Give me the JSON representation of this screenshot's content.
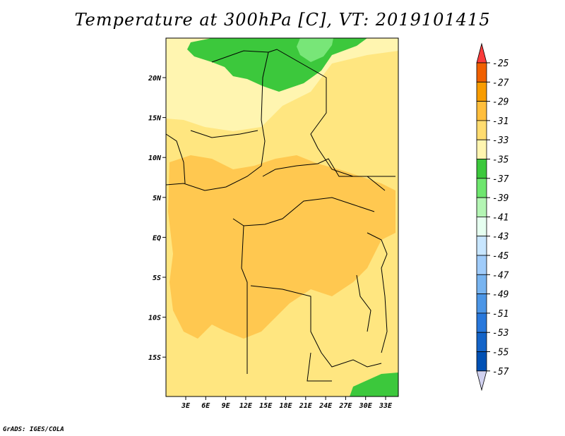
{
  "title": "Temperature at 300hPa [C], VT: 2019101415",
  "credit": "GrADS: IGES/COLA",
  "map": {
    "lat_labels": [
      "20N",
      "15N",
      "10N",
      "5N",
      "EQ",
      "5S",
      "10S",
      "15S"
    ],
    "lon_labels": [
      "3E",
      "6E",
      "9E",
      "12E",
      "15E",
      "18E",
      "21E",
      "24E",
      "27E",
      "30E",
      "33E"
    ],
    "fill_colors": {
      "c1": "#FFF5B0",
      "c2": "#FFE680",
      "c3": "#FFC850",
      "green1": "#3CC83C",
      "green2": "#78E678"
    }
  },
  "colorbar": {
    "labels": [
      "-25",
      "-27",
      "-29",
      "-31",
      "-33",
      "-35",
      "-37",
      "-39",
      "-41",
      "-43",
      "-45",
      "-47",
      "-49",
      "-51",
      "-53",
      "-55",
      "-57"
    ],
    "colors": [
      "#FA3C3C",
      "#F06000",
      "#F89C00",
      "#FFBE3C",
      "#FFDC70",
      "#FFF5B0",
      "#3CC83C",
      "#6EE66E",
      "#B4F5B4",
      "#E6FFF0",
      "#C8E6FF",
      "#A0CCFA",
      "#78B4F0",
      "#4C96E6",
      "#2878DC",
      "#1464C8",
      "#0050B4",
      "#0A0A78",
      "#D2D2F0"
    ]
  }
}
